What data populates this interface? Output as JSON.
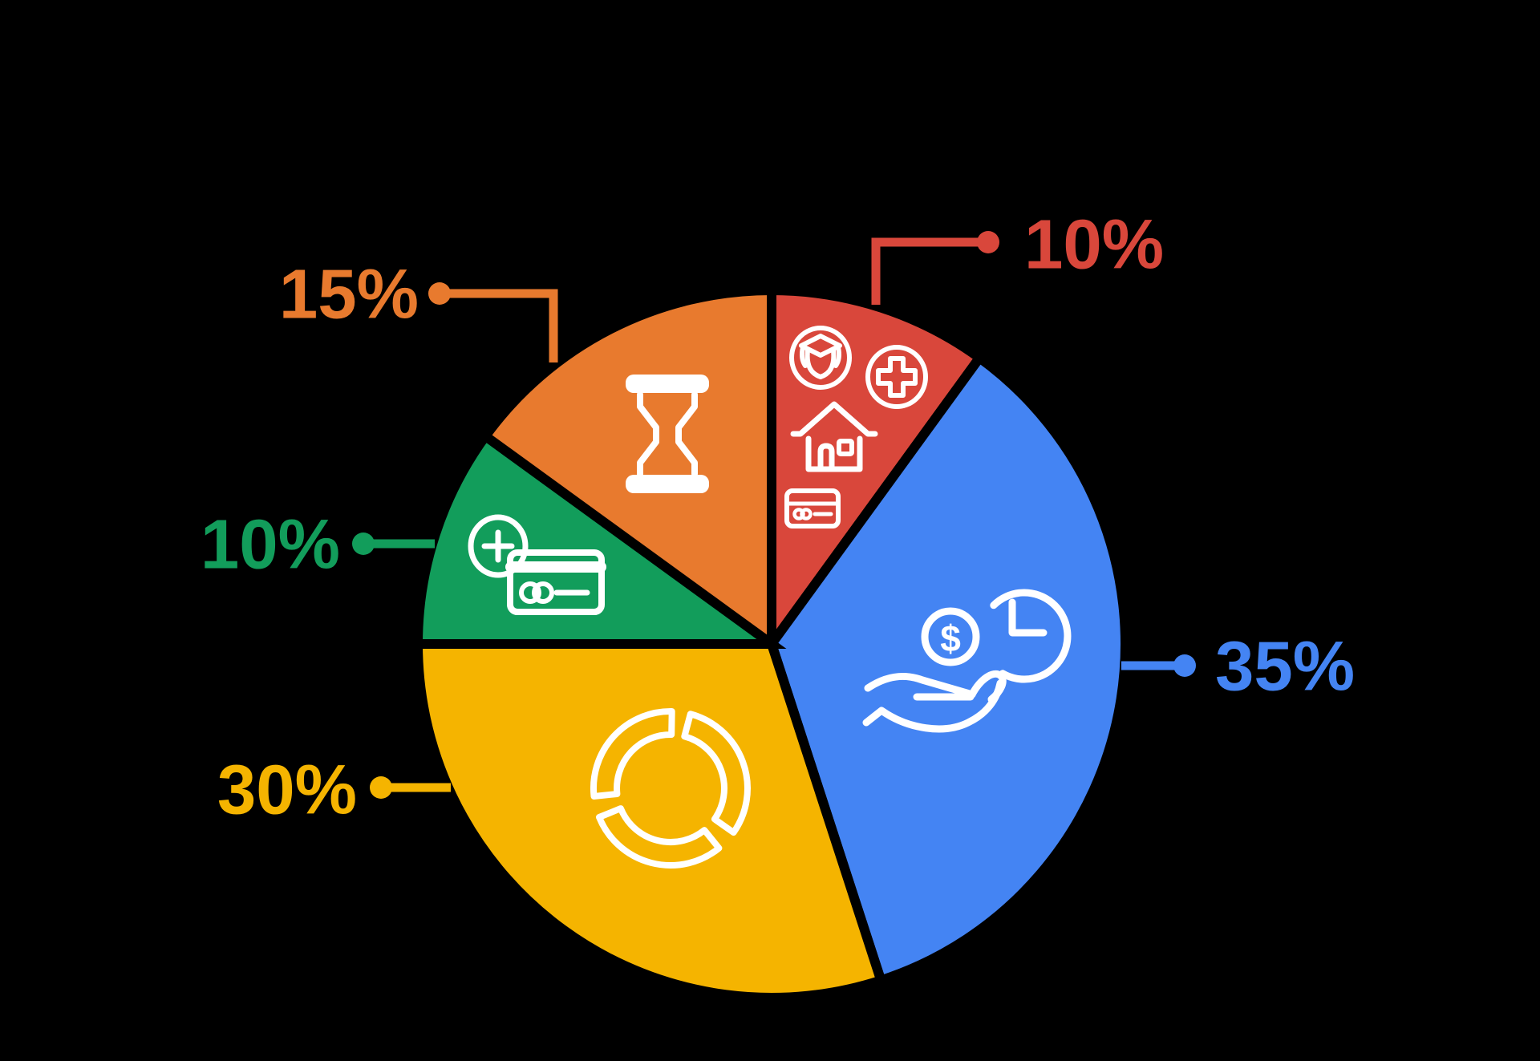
{
  "background": "#000000",
  "colors": {
    "background": "#000000",
    "icon_stroke": "#FFFFFF",
    "red": "#D9473B",
    "blue": "#4484F3",
    "yellow": "#F5B400",
    "green": "#129D5B",
    "orange": "#E87A2E"
  },
  "icons": {
    "dollar_glyph": "$"
  },
  "chart_data": {
    "type": "pie",
    "title": "",
    "direction": "clockwise",
    "start_angle_deg": 0,
    "legend_position": "callouts",
    "categories": [
      "red",
      "blue",
      "yellow",
      "green",
      "orange"
    ],
    "values": [
      10,
      35,
      30,
      10,
      15
    ],
    "slices": [
      {
        "name": "red",
        "label": "10%",
        "value": 10,
        "color": "#D9473B",
        "icons": [
          "graduation-scholar-icon",
          "medical-cross-icon",
          "house-icon",
          "credit-card-icon"
        ]
      },
      {
        "name": "blue",
        "label": "35%",
        "value": 35,
        "color": "#4484F3",
        "icons": [
          "dollar-coin-icon",
          "clock-icon",
          "open-hand-icon"
        ]
      },
      {
        "name": "yellow",
        "label": "30%",
        "value": 30,
        "color": "#F5B400",
        "icons": [
          "segmented-donut-icon"
        ]
      },
      {
        "name": "green",
        "label": "10%",
        "value": 10,
        "color": "#129D5B",
        "icons": [
          "plus-circle-icon",
          "credit-card-icon"
        ]
      },
      {
        "name": "orange",
        "label": "15%",
        "value": 15,
        "color": "#E87A2E",
        "icons": [
          "hourglass-icon"
        ]
      }
    ]
  }
}
